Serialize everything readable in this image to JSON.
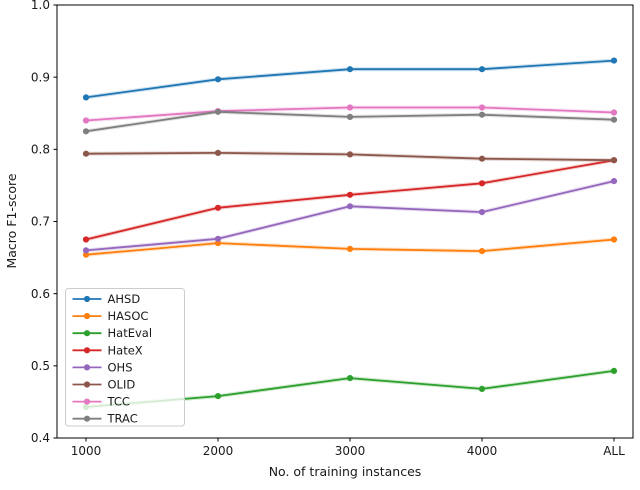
{
  "figure": {
    "background": "#ffffff",
    "spine_color": "#000000",
    "text_color": "#1a1a1a"
  },
  "chart_data": {
    "type": "line",
    "title": "",
    "xlabel": "No. of training instances",
    "ylabel": "Macro F1-score",
    "categories": [
      "1000",
      "2000",
      "3000",
      "4000",
      "ALL"
    ],
    "series": [
      {
        "name": "AHSD",
        "color": "#1f77b4",
        "values": [
          0.872,
          0.897,
          0.911,
          0.911,
          0.923
        ]
      },
      {
        "name": "HASOC",
        "color": "#ff7f0e",
        "values": [
          0.654,
          0.67,
          0.662,
          0.659,
          0.675
        ]
      },
      {
        "name": "HatEval",
        "color": "#2ca02c",
        "values": [
          0.443,
          0.458,
          0.483,
          0.468,
          0.493
        ]
      },
      {
        "name": "HateX",
        "color": "#d62728",
        "values": [
          0.675,
          0.719,
          0.737,
          0.753,
          0.785
        ]
      },
      {
        "name": "OHS",
        "color": "#9467bd",
        "values": [
          0.66,
          0.676,
          0.721,
          0.713,
          0.756
        ]
      },
      {
        "name": "OLID",
        "color": "#8c564b",
        "values": [
          0.794,
          0.795,
          0.793,
          0.787,
          0.785
        ]
      },
      {
        "name": "TCC",
        "color": "#e377c2",
        "values": [
          0.84,
          0.853,
          0.858,
          0.858,
          0.851
        ]
      },
      {
        "name": "TRAC",
        "color": "#7f7f7f",
        "values": [
          0.825,
          0.852,
          0.845,
          0.848,
          0.841
        ]
      }
    ],
    "ylim": [
      0.4,
      1.0
    ],
    "yticks": [
      1.0,
      0.9,
      0.8,
      0.7,
      0.6,
      0.5,
      0.4
    ],
    "grid": false,
    "legend_position": "lower left",
    "marker": "circle",
    "legend_border_color": "#cccccc",
    "legend_fill_opacity": 0.8
  }
}
